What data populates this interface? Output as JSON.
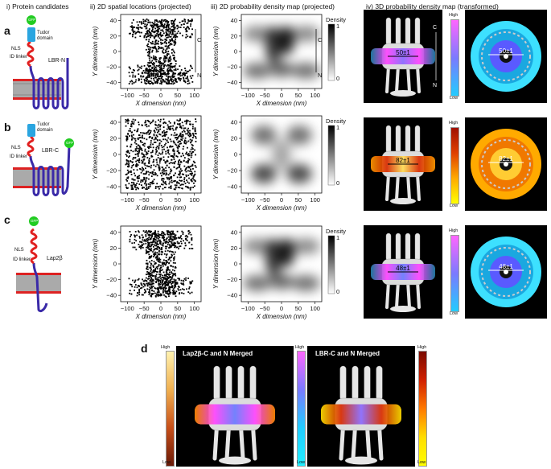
{
  "headers": {
    "h1": "i) Protein candidates",
    "h2": "ii) 2D spatial locations (projected)",
    "h3": "iii) 2D probability density map (projected)",
    "h4": "iv) 3D probability density map (transformed)"
  },
  "rows": [
    {
      "letter": "a",
      "protein": "LBR-N",
      "tag": "GFP",
      "domain": "Tudor domain",
      "nls": "NLS",
      "linker": "ID linker",
      "measure": "50±1",
      "c": "C",
      "n": "N"
    },
    {
      "letter": "b",
      "protein": "LBR-C",
      "tag": "GFP",
      "domain": "Tudor domain",
      "nls": "NLS",
      "linker": "ID linker",
      "measure": "82±1"
    },
    {
      "letter": "c",
      "protein": "Lap2β",
      "tag": "GFP",
      "nls": "NLS",
      "linker": "ID linker",
      "measure": "48±1"
    }
  ],
  "axes": {
    "xlabel": "X dimension (nm)",
    "ylabel": "Y dimension (nm)",
    "xticks": [
      "−100",
      "−50",
      "0",
      "50",
      "100"
    ],
    "yticks": [
      "40",
      "20",
      "0",
      "−20",
      "−40"
    ],
    "density_label": "Density",
    "density_max": "1",
    "density_min": "0"
  },
  "colorbar": {
    "high": "High",
    "low": "Low"
  },
  "panel_d": {
    "letter": "d",
    "left_title": "Lap2β-C and N Merged",
    "right_title": "LBR-C and N Merged"
  },
  "colors": {
    "magenta": "#ff33ff",
    "cyan": "#33d6ff",
    "orange": "#ff8800",
    "red": "#cc1100",
    "yellow": "#ffdd00"
  }
}
